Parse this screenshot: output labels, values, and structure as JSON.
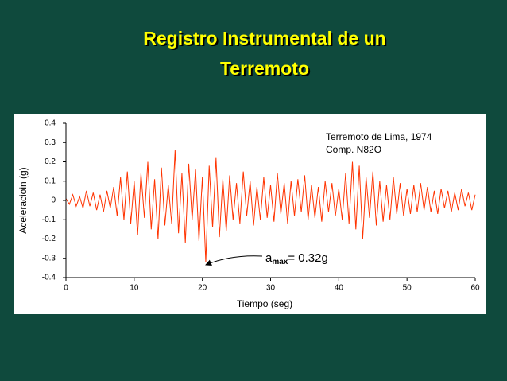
{
  "slide": {
    "title_lines": [
      "Registro Instrumental de un",
      "Terremoto"
    ]
  },
  "chart_data": {
    "type": "line",
    "y_label": "Aceleracioin (g)",
    "x_label": "Tiempo (seg)",
    "note_lines": [
      "Terremoto de Lima, 1974",
      "Comp. N82O"
    ],
    "peak_note": {
      "base": "a",
      "sub": "max",
      "rest": "= 0.32g"
    },
    "color": "#ff3300",
    "xlim": [
      0,
      60
    ],
    "xticks": [
      0,
      10,
      20,
      30,
      40,
      50,
      60
    ],
    "ylim": [
      -0.4,
      0.4
    ],
    "yticks": [
      0.4,
      0.3,
      0.2,
      0.1,
      0,
      -0.1,
      -0.2,
      -0.3,
      -0.4
    ],
    "x": [
      0,
      0.5,
      1,
      1.5,
      2,
      2.5,
      3,
      3.5,
      4,
      4.5,
      5,
      5.5,
      6,
      6.5,
      7,
      7.5,
      8,
      8.5,
      9,
      9.5,
      10,
      10.5,
      11,
      11.5,
      12,
      12.5,
      13,
      13.5,
      14,
      14.5,
      15,
      15.5,
      16,
      16.5,
      17,
      17.5,
      18,
      18.5,
      19,
      19.5,
      20,
      20.5,
      21,
      21.5,
      22,
      22.5,
      23,
      23.5,
      24,
      24.5,
      25,
      25.5,
      26,
      26.5,
      27,
      27.5,
      28,
      28.5,
      29,
      29.5,
      30,
      30.5,
      31,
      31.5,
      32,
      32.5,
      33,
      33.5,
      34,
      34.5,
      35,
      35.5,
      36,
      36.5,
      37,
      37.5,
      38,
      38.5,
      39,
      39.5,
      40,
      40.5,
      41,
      41.5,
      42,
      42.5,
      43,
      43.5,
      44,
      44.5,
      45,
      45.5,
      46,
      46.5,
      47,
      47.5,
      48,
      48.5,
      49,
      49.5,
      50,
      50.5,
      51,
      51.5,
      52,
      52.5,
      53,
      53.5,
      54,
      54.5,
      55,
      55.5,
      56,
      56.5,
      57,
      57.5,
      58,
      58.5,
      59,
      59.5,
      60
    ],
    "values": [
      0.01,
      -0.02,
      0.03,
      -0.03,
      0.02,
      -0.04,
      0.05,
      -0.03,
      0.04,
      -0.05,
      0.03,
      -0.06,
      0.05,
      -0.04,
      0.07,
      -0.08,
      0.12,
      -0.1,
      0.15,
      -0.12,
      0.1,
      -0.18,
      0.14,
      -0.09,
      0.2,
      -0.15,
      0.11,
      -0.2,
      0.17,
      -0.13,
      0.08,
      -0.12,
      0.26,
      -0.17,
      0.14,
      -0.22,
      0.19,
      -0.1,
      0.16,
      -0.21,
      0.12,
      -0.32,
      0.18,
      -0.14,
      0.22,
      -0.19,
      0.11,
      -0.16,
      0.13,
      -0.1,
      0.09,
      -0.12,
      0.15,
      -0.08,
      0.1,
      -0.13,
      0.07,
      -0.1,
      0.12,
      -0.09,
      0.08,
      -0.11,
      0.14,
      -0.07,
      0.09,
      -0.12,
      0.1,
      -0.08,
      0.11,
      -0.06,
      0.13,
      -0.1,
      0.08,
      -0.09,
      0.07,
      -0.11,
      0.1,
      -0.06,
      0.09,
      -0.08,
      0.06,
      -0.1,
      0.14,
      -0.12,
      0.2,
      -0.15,
      0.18,
      -0.2,
      0.12,
      -0.09,
      0.15,
      -0.13,
      0.1,
      -0.11,
      0.08,
      -0.1,
      0.12,
      -0.07,
      0.09,
      -0.08,
      0.06,
      -0.07,
      0.08,
      -0.06,
      0.09,
      -0.05,
      0.07,
      -0.06,
      0.05,
      -0.07,
      0.06,
      -0.04,
      0.05,
      -0.06,
      0.04,
      -0.05,
      0.06,
      -0.03,
      0.04,
      -0.05,
      0.03
    ]
  }
}
